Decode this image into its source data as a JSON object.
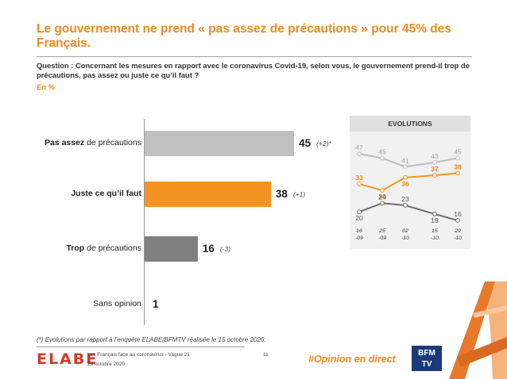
{
  "title": "Le gouvernement ne prend « pas assez de précautions » pour 45% des Français.",
  "question": "Question : Concernant les mesures en rapport avec le coronavirus Covid-19, selon vous, le gouvernement prend-il trop de précautions, pas assez ou juste ce qu’il faut ?",
  "unit": "En %",
  "chart_data": [
    {
      "type": "bar",
      "orientation": "horizontal",
      "categories": [
        {
          "bold": "Pas assez",
          "rest": " de précautions"
        },
        {
          "bold": "Juste ce qu’il faut",
          "rest": ""
        },
        {
          "bold": "Trop",
          "rest": " de précautions"
        },
        {
          "bold": "",
          "rest": "Sans opinion"
        }
      ],
      "values": [
        45,
        38,
        16,
        1
      ],
      "value_labels": [
        "45",
        "38",
        "16",
        "1"
      ],
      "evolutions": [
        "(+2)*",
        "(+1)",
        "(-3)",
        ""
      ],
      "colors": [
        "#c0c0c0",
        "#f39322",
        "#808080",
        "#ffffff"
      ],
      "xlim": [
        0,
        55
      ]
    },
    {
      "type": "line",
      "title": "EVOLUTIONS",
      "x": [
        "16 -09",
        "25 -09",
        "02 -10",
        "15 -10",
        "29 -10"
      ],
      "x_lines": [
        [
          "16",
          "-09"
        ],
        [
          "25",
          "-09"
        ],
        [
          "02",
          "-10"
        ],
        [
          "15",
          "-10"
        ],
        [
          "29",
          "-10"
        ]
      ],
      "series": [
        {
          "values": [
            47,
            45,
            41,
            43,
            45
          ],
          "color": "#bdbdbd"
        },
        {
          "values": [
            33,
            30,
            36,
            37,
            38
          ],
          "color": "#f39322"
        },
        {
          "values": [
            20,
            24,
            23,
            19,
            16
          ],
          "color": "#6f6f6f"
        }
      ]
    }
  ],
  "footnote": "(*) Evolutions par rapport à l’enquête ELABE/BFMTV réalisée le 15 octobre 2020.",
  "footer": {
    "logo": "ELABE",
    "survey": "Les Français face au coronavirus - Vague 21",
    "date": "29 octobre 2020",
    "page": "11",
    "hashtag": "#Opinion en direct",
    "bfm_line1": "BFM",
    "bfm_line2": "TV"
  }
}
